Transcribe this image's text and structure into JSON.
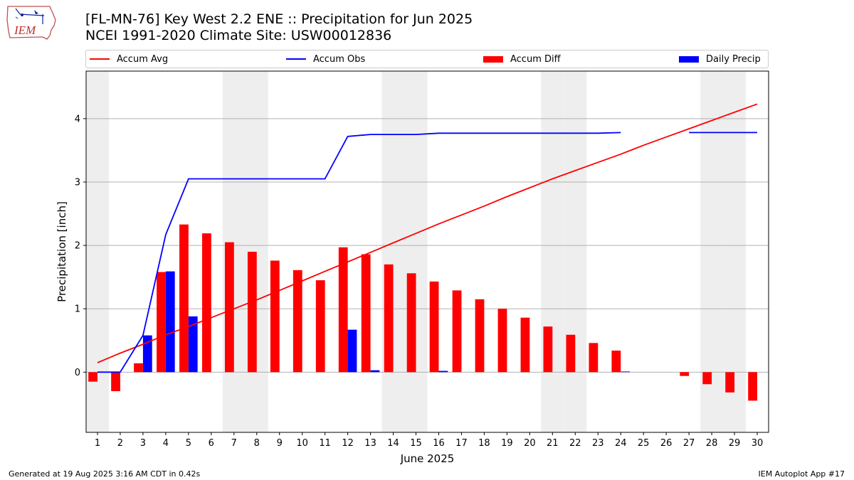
{
  "header": {
    "title_line1": "[FL-MN-76] Key West 2.2 ENE :: Precipitation for Jun 2025",
    "title_line2": "NCEI 1991-2020 Climate Site: USW00012836"
  },
  "logo": {
    "text": "IEM"
  },
  "legend": {
    "items": [
      {
        "label": "Accum Avg",
        "kind": "line",
        "color": "#ff0000"
      },
      {
        "label": "Accum Obs",
        "kind": "line",
        "color": "#0000ff"
      },
      {
        "label": "Accum Diff",
        "kind": "bar",
        "color": "#ff0000"
      },
      {
        "label": "Daily Precip",
        "kind": "bar",
        "color": "#0000ff"
      }
    ]
  },
  "footer": {
    "left": "Generated at 19 Aug 2025 3:16 AM CDT in 0.42s",
    "right": "IEM Autoplot App #17"
  },
  "chart_data": {
    "type": "bar",
    "xlabel": "June 2025",
    "ylabel": "Precipitation [inch]",
    "xlim": [
      0.5,
      30.5
    ],
    "ylim": [
      -0.95,
      4.75
    ],
    "grid": "horizontal",
    "legend_position": "top",
    "weekend_shading_days": [
      1,
      7,
      8,
      14,
      15,
      21,
      22,
      28,
      29
    ],
    "x_ticks": [
      "1",
      "2",
      "3",
      "4",
      "5",
      "6",
      "7",
      "8",
      "9",
      "10",
      "11",
      "12",
      "13",
      "14",
      "15",
      "16",
      "17",
      "18",
      "19",
      "20",
      "21",
      "22",
      "23",
      "24",
      "25",
      "26",
      "27",
      "28",
      "29",
      "30"
    ],
    "y_ticks": [
      "0",
      "1",
      "2",
      "3",
      "4"
    ],
    "days": [
      1,
      2,
      3,
      4,
      5,
      6,
      7,
      8,
      9,
      10,
      11,
      12,
      13,
      14,
      15,
      16,
      17,
      18,
      19,
      20,
      21,
      22,
      23,
      24,
      25,
      26,
      27,
      28,
      29,
      30
    ],
    "series": [
      {
        "name": "Accum Avg",
        "kind": "line",
        "color": "#ff0000",
        "values": [
          0.15,
          0.3,
          0.44,
          0.59,
          0.72,
          0.86,
          1.0,
          1.14,
          1.29,
          1.44,
          1.59,
          1.74,
          1.89,
          2.04,
          2.19,
          2.34,
          2.48,
          2.62,
          2.77,
          2.91,
          3.05,
          3.18,
          3.31,
          3.44,
          3.58,
          3.71,
          3.84,
          3.97,
          4.1,
          4.23
        ]
      },
      {
        "name": "Accum Obs",
        "kind": "line",
        "color": "#0000ff",
        "values": [
          0.0,
          0.0,
          0.58,
          2.17,
          3.05,
          3.05,
          3.05,
          3.05,
          3.05,
          3.05,
          3.05,
          3.72,
          3.75,
          3.75,
          3.75,
          3.77,
          3.77,
          3.77,
          3.77,
          3.77,
          3.77,
          3.77,
          3.77,
          3.78,
          null,
          null,
          3.78,
          3.78,
          3.78,
          3.78
        ]
      },
      {
        "name": "Accum Diff",
        "kind": "bar",
        "color": "#ff0000",
        "values": [
          -0.15,
          -0.3,
          0.14,
          1.58,
          2.33,
          2.19,
          2.05,
          1.9,
          1.76,
          1.61,
          1.45,
          1.97,
          1.86,
          1.7,
          1.56,
          1.43,
          1.29,
          1.15,
          1.0,
          0.86,
          0.72,
          0.59,
          0.46,
          0.34,
          null,
          null,
          -0.06,
          -0.19,
          -0.32,
          -0.45
        ]
      },
      {
        "name": "Daily Precip",
        "kind": "bar",
        "color": "#0000ff",
        "values": [
          0,
          0,
          0.58,
          1.59,
          0.88,
          0,
          0,
          0,
          0,
          0,
          0,
          0.67,
          0.03,
          0,
          0,
          0.02,
          0,
          0,
          0,
          0,
          0,
          0,
          0,
          0.01,
          null,
          null,
          0,
          0,
          0,
          0
        ]
      }
    ]
  }
}
